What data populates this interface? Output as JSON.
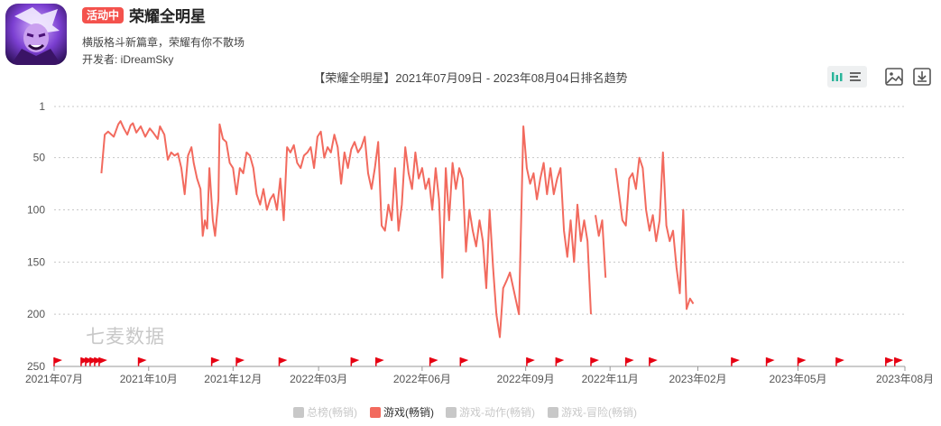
{
  "app": {
    "status_badge": "活动中",
    "title": "荣耀全明星",
    "description": "横版格斗新篇章，荣耀有你不散场",
    "developer": "开发者: iDreamSky",
    "watermark": "七麦数据"
  },
  "toolbar": {
    "icons": [
      "bar-chart-icon",
      "list-icon",
      "image-icon",
      "download-icon"
    ]
  },
  "colors": {
    "series": "#f26a5e",
    "flag": "#e60012",
    "grid": "#c8c8c8",
    "inactive_legend": "#c8c8c8",
    "badge": "#f4524d"
  },
  "chart_data": {
    "type": "line",
    "title": "【荣耀全明星】2021年07月09日 - 2023年08月04日排名趋势",
    "y_axis": {
      "reversed": true,
      "range": [
        1,
        250
      ],
      "ticks": [
        1,
        50,
        100,
        150,
        200,
        250
      ]
    },
    "x_axis": {
      "range": [
        "2021-07-09",
        "2023-08-04"
      ],
      "tick_labels": [
        "2021年07月",
        "2021年10月",
        "2021年12月",
        "2022年03月",
        "2022年06月",
        "2022年09月",
        "2022年11月",
        "2023年02月",
        "2023年05月",
        "2023年08月"
      ],
      "tick_dates": [
        "2021-07-09",
        "2021-10-01",
        "2021-12-15",
        "2022-03-01",
        "2022-06-01",
        "2022-09-01",
        "2022-11-15",
        "2023-02-01",
        "2023-05-01",
        "2023-08-04"
      ]
    },
    "grid": true,
    "legend": {
      "position": "bottom",
      "items": [
        {
          "label": "总榜(畅销)",
          "active": false
        },
        {
          "label": "游戏(畅销)",
          "active": true
        },
        {
          "label": "游戏-动作(畅销)",
          "active": false
        },
        {
          "label": "游戏-冒险(畅销)",
          "active": false
        }
      ]
    },
    "series": [
      {
        "name": "游戏(畅销)",
        "segments": [
          [
            [
              "2021-08-20",
              65
            ],
            [
              "2021-08-23",
              28
            ],
            [
              "2021-08-26",
              25
            ],
            [
              "2021-08-31",
              30
            ],
            [
              "2021-09-04",
              18
            ],
            [
              "2021-09-06",
              15
            ],
            [
              "2021-09-09",
              22
            ],
            [
              "2021-09-12",
              28
            ],
            [
              "2021-09-15",
              19
            ],
            [
              "2021-09-17",
              17
            ],
            [
              "2021-09-20",
              26
            ],
            [
              "2021-09-24",
              20
            ],
            [
              "2021-09-28",
              30
            ],
            [
              "2021-10-02",
              22
            ],
            [
              "2021-10-05",
              26
            ],
            [
              "2021-10-09",
              32
            ],
            [
              "2021-10-11",
              20
            ],
            [
              "2021-10-15",
              28
            ],
            [
              "2021-10-18",
              52
            ],
            [
              "2021-10-21",
              45
            ],
            [
              "2021-10-24",
              48
            ],
            [
              "2021-10-27",
              46
            ],
            [
              "2021-10-30",
              60
            ],
            [
              "2021-11-02",
              85
            ],
            [
              "2021-11-05",
              48
            ],
            [
              "2021-11-08",
              40
            ],
            [
              "2021-11-10",
              55
            ],
            [
              "2021-11-13",
              70
            ],
            [
              "2021-11-16",
              80
            ],
            [
              "2021-11-18",
              125
            ],
            [
              "2021-11-20",
              110
            ],
            [
              "2021-11-22",
              118
            ],
            [
              "2021-11-24",
              60
            ],
            [
              "2021-11-27",
              110
            ],
            [
              "2021-11-29",
              125
            ],
            [
              "2021-12-02",
              90
            ],
            [
              "2021-12-03",
              18
            ],
            [
              "2021-12-06",
              32
            ],
            [
              "2021-12-09",
              35
            ],
            [
              "2021-12-12",
              55
            ],
            [
              "2021-12-15",
              60
            ],
            [
              "2021-12-18",
              85
            ],
            [
              "2021-12-21",
              60
            ],
            [
              "2021-12-24",
              65
            ],
            [
              "2021-12-27",
              45
            ],
            [
              "2021-12-30",
              48
            ],
            [
              "2022-01-02",
              60
            ],
            [
              "2022-01-05",
              85
            ],
            [
              "2022-01-08",
              95
            ],
            [
              "2022-01-11",
              80
            ],
            [
              "2022-01-14",
              100
            ],
            [
              "2022-01-17",
              90
            ],
            [
              "2022-01-20",
              85
            ],
            [
              "2022-01-23",
              100
            ],
            [
              "2022-01-26",
              70
            ],
            [
              "2022-01-29",
              110
            ],
            [
              "2022-02-01",
              40
            ],
            [
              "2022-02-04",
              45
            ],
            [
              "2022-02-07",
              38
            ],
            [
              "2022-02-10",
              55
            ],
            [
              "2022-02-13",
              60
            ],
            [
              "2022-02-16",
              48
            ],
            [
              "2022-02-19",
              45
            ],
            [
              "2022-02-22",
              40
            ],
            [
              "2022-02-25",
              60
            ],
            [
              "2022-02-28",
              30
            ],
            [
              "2022-03-03",
              25
            ],
            [
              "2022-03-06",
              50
            ],
            [
              "2022-03-09",
              40
            ],
            [
              "2022-03-12",
              45
            ],
            [
              "2022-03-15",
              28
            ],
            [
              "2022-03-18",
              40
            ],
            [
              "2022-03-21",
              75
            ],
            [
              "2022-03-24",
              45
            ],
            [
              "2022-03-27",
              60
            ],
            [
              "2022-03-30",
              42
            ],
            [
              "2022-04-02",
              35
            ],
            [
              "2022-04-05",
              45
            ],
            [
              "2022-04-08",
              40
            ],
            [
              "2022-04-11",
              30
            ],
            [
              "2022-04-14",
              65
            ],
            [
              "2022-04-17",
              80
            ],
            [
              "2022-04-20",
              60
            ],
            [
              "2022-04-23",
              35
            ],
            [
              "2022-04-26",
              115
            ],
            [
              "2022-04-29",
              120
            ],
            [
              "2022-05-02",
              95
            ],
            [
              "2022-05-05",
              110
            ],
            [
              "2022-05-08",
              60
            ],
            [
              "2022-05-11",
              120
            ],
            [
              "2022-05-14",
              95
            ],
            [
              "2022-05-17",
              40
            ],
            [
              "2022-05-20",
              65
            ],
            [
              "2022-05-23",
              80
            ],
            [
              "2022-05-26",
              45
            ],
            [
              "2022-05-29",
              70
            ],
            [
              "2022-06-01",
              60
            ],
            [
              "2022-06-04",
              80
            ],
            [
              "2022-06-07",
              70
            ],
            [
              "2022-06-10",
              100
            ],
            [
              "2022-06-13",
              60
            ],
            [
              "2022-06-16",
              90
            ],
            [
              "2022-06-19",
              165
            ],
            [
              "2022-06-22",
              60
            ],
            [
              "2022-06-25",
              110
            ],
            [
              "2022-06-28",
              55
            ],
            [
              "2022-07-01",
              80
            ],
            [
              "2022-07-04",
              60
            ],
            [
              "2022-07-07",
              70
            ],
            [
              "2022-07-10",
              140
            ],
            [
              "2022-07-13",
              100
            ],
            [
              "2022-07-16",
              120
            ],
            [
              "2022-07-19",
              135
            ],
            [
              "2022-07-22",
              110
            ],
            [
              "2022-07-25",
              130
            ],
            [
              "2022-07-28",
              175
            ],
            [
              "2022-07-31",
              100
            ],
            [
              "2022-08-03",
              155
            ],
            [
              "2022-08-06",
              200
            ],
            [
              "2022-08-09",
              222
            ],
            [
              "2022-08-12",
              175
            ],
            [
              "2022-08-15",
              168
            ],
            [
              "2022-08-18",
              160
            ],
            [
              "2022-08-22",
              180
            ],
            [
              "2022-08-26",
              200
            ],
            [
              "2022-08-30",
              20
            ],
            [
              "2022-09-02",
              60
            ],
            [
              "2022-09-05",
              75
            ],
            [
              "2022-09-08",
              65
            ],
            [
              "2022-09-11",
              90
            ],
            [
              "2022-09-14",
              70
            ],
            [
              "2022-09-17",
              55
            ],
            [
              "2022-09-20",
              85
            ],
            [
              "2022-09-23",
              60
            ],
            [
              "2022-09-26",
              85
            ],
            [
              "2022-09-29",
              70
            ],
            [
              "2022-10-02",
              60
            ],
            [
              "2022-10-05",
              120
            ],
            [
              "2022-10-08",
              145
            ],
            [
              "2022-10-11",
              110
            ],
            [
              "2022-10-14",
              150
            ],
            [
              "2022-10-17",
              95
            ],
            [
              "2022-10-20",
              130
            ],
            [
              "2022-10-23",
              110
            ],
            [
              "2022-10-26",
              130
            ],
            [
              "2022-10-29",
              200
            ]
          ],
          [
            [
              "2022-11-02",
              105
            ],
            [
              "2022-11-05",
              125
            ],
            [
              "2022-11-08",
              110
            ],
            [
              "2022-11-11",
              165
            ]
          ],
          [
            [
              "2022-11-20",
              60
            ],
            [
              "2022-11-23",
              85
            ],
            [
              "2022-11-26",
              110
            ],
            [
              "2022-11-29",
              115
            ],
            [
              "2022-12-02",
              70
            ],
            [
              "2022-12-05",
              65
            ],
            [
              "2022-12-08",
              80
            ],
            [
              "2022-12-11",
              50
            ],
            [
              "2022-12-14",
              60
            ],
            [
              "2022-12-17",
              100
            ],
            [
              "2022-12-20",
              120
            ],
            [
              "2022-12-23",
              105
            ],
            [
              "2022-12-26",
              130
            ],
            [
              "2022-12-29",
              110
            ],
            [
              "2023-01-01",
              45
            ],
            [
              "2023-01-04",
              115
            ],
            [
              "2023-01-07",
              130
            ],
            [
              "2023-01-10",
              120
            ],
            [
              "2023-01-13",
              155
            ],
            [
              "2023-01-16",
              180
            ],
            [
              "2023-01-19",
              100
            ],
            [
              "2023-01-22",
              195
            ],
            [
              "2023-01-25",
              185
            ],
            [
              "2023-01-28",
              190
            ]
          ]
        ]
      }
    ],
    "flags": [
      "2021-07-09",
      "2021-08-02",
      "2021-08-06",
      "2021-08-10",
      "2021-08-14",
      "2021-08-18",
      "2021-09-22",
      "2021-11-26",
      "2021-12-18",
      "2022-01-25",
      "2022-03-30",
      "2022-04-21",
      "2022-06-08",
      "2022-07-05",
      "2022-09-02",
      "2022-09-28",
      "2022-10-29",
      "2022-11-29",
      "2022-12-20",
      "2023-03-03",
      "2023-04-03",
      "2023-05-01",
      "2023-06-04",
      "2023-07-18",
      "2023-07-26"
    ]
  }
}
